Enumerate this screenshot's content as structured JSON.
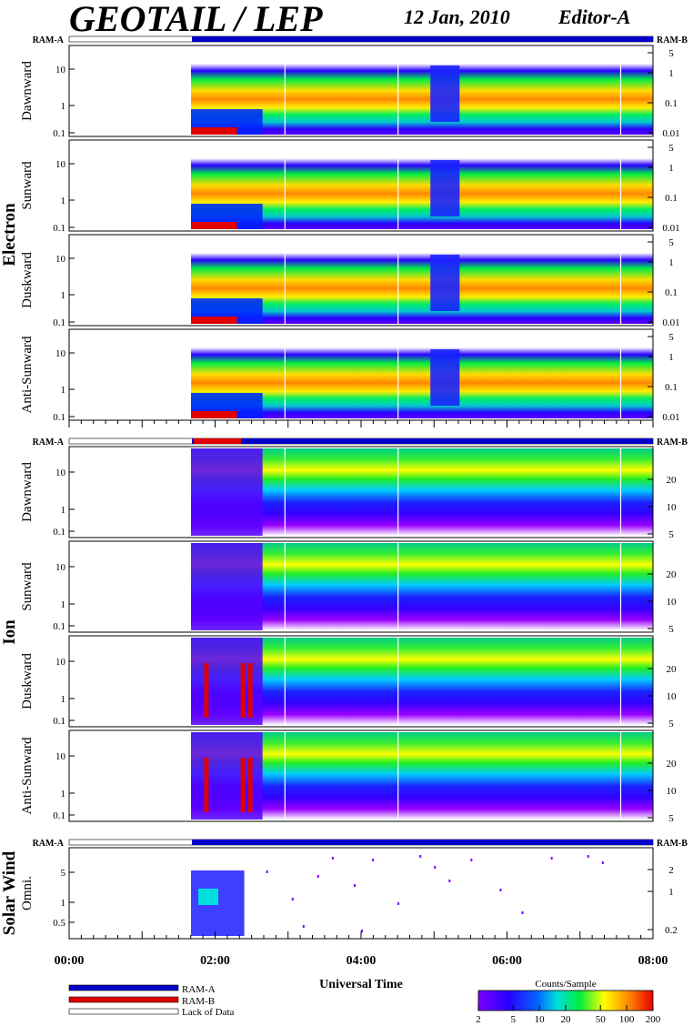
{
  "header": {
    "title": "GEOTAIL / LEP",
    "date": "12 Jan, 2010",
    "editor": "Editor-A"
  },
  "ram": {
    "left": "RAM-A",
    "right": "RAM-B"
  },
  "groups": {
    "electron": "Electron",
    "ion": "Ion",
    "solar_wind": "Solar Wind"
  },
  "x_axis": {
    "title": "Universal Time",
    "ticks": [
      "00:00",
      "02:00",
      "04:00",
      "06:00",
      "08:00"
    ],
    "range_hours": [
      0,
      8
    ]
  },
  "legend": {
    "items": [
      {
        "label": "RAM-A",
        "color": "#0000c8"
      },
      {
        "label": "RAM-B",
        "color": "#e00000"
      },
      {
        "label": "Lack of Data",
        "color": "#ffffff"
      }
    ]
  },
  "colorbar": {
    "title": "Counts/Sample",
    "ticks": [
      "2",
      "5",
      "10",
      "20",
      "50",
      "100",
      "200"
    ],
    "range": [
      2,
      200
    ],
    "scale": "log"
  },
  "chart_data": {
    "type": "heatmap",
    "x_range_hours": [
      0,
      8
    ],
    "data_start_hours": 1.67,
    "electron_panels": [
      {
        "name": "Dawnward",
        "left_ticks": [
          "10",
          "1",
          "0.1"
        ],
        "right_ticks": [
          "5",
          "1",
          "0.1",
          "0.01"
        ]
      },
      {
        "name": "Sunward",
        "left_ticks": [
          "10",
          "1",
          "0.1"
        ],
        "right_ticks": [
          "5",
          "1",
          "0.1",
          "0.01"
        ]
      },
      {
        "name": "Duskward",
        "left_ticks": [
          "10",
          "1",
          "0.1"
        ],
        "right_ticks": [
          "5",
          "1",
          "0.1",
          "0.01"
        ]
      },
      {
        "name": "Anti-Sunward",
        "left_ticks": [
          "10",
          "1",
          "0.1"
        ],
        "right_ticks": [
          "5",
          "1",
          "0.1",
          "0.01"
        ]
      }
    ],
    "ion_panels": [
      {
        "name": "Dawnward",
        "left_ticks": [
          "10",
          "1",
          "0.1"
        ],
        "right_ticks": [
          "20",
          "10",
          "5"
        ]
      },
      {
        "name": "Sunward",
        "left_ticks": [
          "10",
          "1",
          "0.1"
        ],
        "right_ticks": [
          "20",
          "10",
          "5"
        ]
      },
      {
        "name": "Duskward",
        "left_ticks": [
          "10",
          "1",
          "0.1"
        ],
        "right_ticks": [
          "20",
          "10",
          "5"
        ]
      },
      {
        "name": "Anti-Sunward",
        "left_ticks": [
          "10",
          "1",
          "0.1"
        ],
        "right_ticks": [
          "20",
          "10",
          "5"
        ]
      }
    ],
    "solar_wind_panel": {
      "name": "Omni.",
      "left_ticks": [
        "5",
        "1",
        "0.5"
      ],
      "right_ticks": [
        "2",
        "1",
        "0.2"
      ]
    }
  }
}
